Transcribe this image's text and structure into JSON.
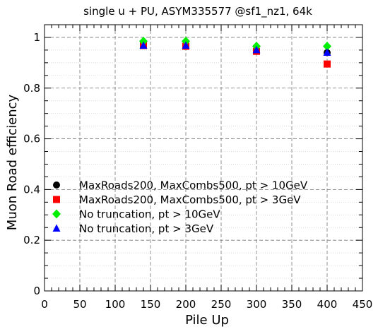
{
  "chart_data": {
    "type": "scatter",
    "title": "single u + PU, ASYM335577 @sf1_nz1, 64k",
    "xlabel": "Pile Up",
    "ylabel": "Muon Road efficiency",
    "xlim": [
      0,
      450
    ],
    "ylim": [
      0,
      1.05
    ],
    "xticks": [
      0,
      50,
      100,
      150,
      200,
      250,
      300,
      350,
      400,
      450
    ],
    "yticks": [
      0,
      0.2,
      0.4,
      0.6,
      0.8,
      1
    ],
    "xtick_labels": [
      "0",
      "50",
      "100",
      "150",
      "200",
      "250",
      "300",
      "350",
      "400",
      "450"
    ],
    "ytick_labels": [
      "0",
      "0.2",
      "0.4",
      "0.6",
      "0.8",
      "1"
    ],
    "grid": true,
    "legend_position": "center-left",
    "series": [
      {
        "name": "MaxRoads200, MaxCombs500, pt > 10GeV",
        "marker": "circle",
        "color": "#000000",
        "x": [
          140,
          200,
          300,
          400
        ],
        "y": [
          0.968,
          0.968,
          0.95,
          0.94
        ]
      },
      {
        "name": "MaxRoads200, MaxCombs500, pt > 3GeV",
        "marker": "square",
        "color": "#ff0000",
        "x": [
          140,
          200,
          300,
          400
        ],
        "y": [
          0.968,
          0.965,
          0.945,
          0.895
        ]
      },
      {
        "name": "No truncation, pt > 10GeV",
        "marker": "diamond",
        "color": "#00ee00",
        "x": [
          140,
          200,
          300,
          400
        ],
        "y": [
          0.985,
          0.985,
          0.965,
          0.965
        ]
      },
      {
        "name": "No truncation, pt > 3GeV",
        "marker": "triangle",
        "color": "#0000ff",
        "x": [
          140,
          200,
          300,
          400
        ],
        "y": [
          0.968,
          0.968,
          0.95,
          0.94
        ]
      }
    ]
  }
}
